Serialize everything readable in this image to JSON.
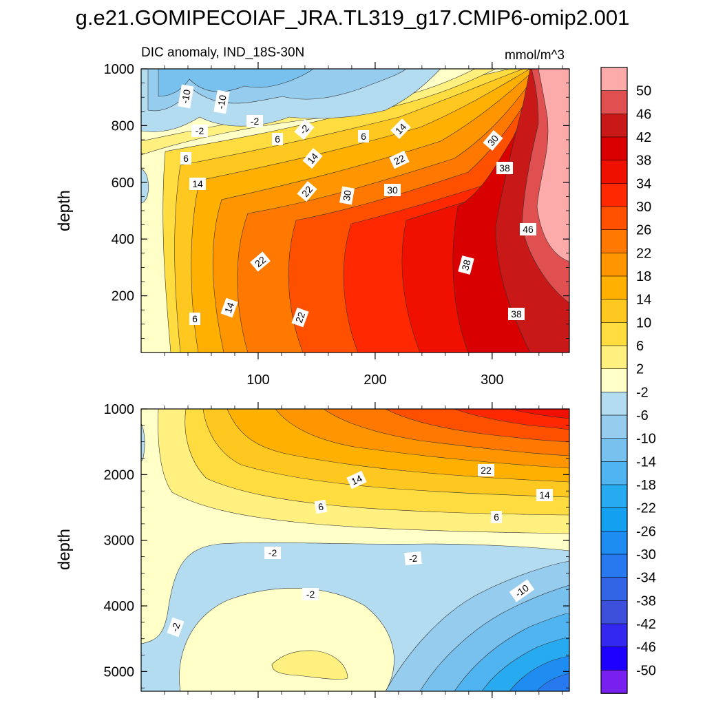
{
  "title": "g.e21.GOMIPECOIAF_JRA.TL319_g17.CMIP6-omip2.001",
  "chart_data": {
    "type": "contour",
    "subtitle_left": "DIC anomaly, IND_18S-30N",
    "units": "mmol/m^3",
    "xticks": [
      100,
      200,
      300
    ],
    "xlim": [
      0,
      366
    ],
    "upper_panel": {
      "ylabel": "depth",
      "ylim": [
        1000,
        0
      ],
      "yticks": [
        200,
        400,
        600,
        800,
        1000
      ],
      "contour_labels": [
        "-10",
        "-10",
        "-2",
        "-2",
        "-2",
        "6",
        "6",
        "6",
        "14",
        "14",
        "14",
        "22",
        "22",
        "30",
        "30",
        "30",
        "38",
        "38",
        "38",
        "46",
        "22",
        "14",
        "6",
        "22"
      ]
    },
    "lower_panel": {
      "ylabel": "depth",
      "ylim": [
        1000,
        5300
      ],
      "yticks": [
        1000,
        2000,
        3000,
        4000,
        5000
      ],
      "contour_labels": [
        "14",
        "22",
        "14",
        "6",
        "6",
        "-2",
        "-2",
        "-2",
        "-10",
        "-2"
      ]
    },
    "colorbar": {
      "levels": [
        50,
        46,
        42,
        38,
        34,
        30,
        26,
        22,
        18,
        14,
        10,
        6,
        2,
        -2,
        -6,
        -10,
        -14,
        -18,
        -22,
        -26,
        -30,
        -34,
        -38,
        -42,
        -46,
        -50
      ],
      "colors": [
        "#fcaaaa",
        "#e05050",
        "#c81818",
        "#d80000",
        "#f01000",
        "#ff2800",
        "#ff5000",
        "#ff7800",
        "#ff9600",
        "#ffb000",
        "#ffc820",
        "#ffdc40",
        "#fff080",
        "#ffffc8",
        "#b4dcf0",
        "#96ccee",
        "#78c0ee",
        "#50b4f0",
        "#28aaf0",
        "#14a0f0",
        "#1e8cf0",
        "#2878f0",
        "#3264e6",
        "#3c50dc",
        "#3228f0",
        "#1e00ff",
        "#7820f0"
      ]
    }
  }
}
